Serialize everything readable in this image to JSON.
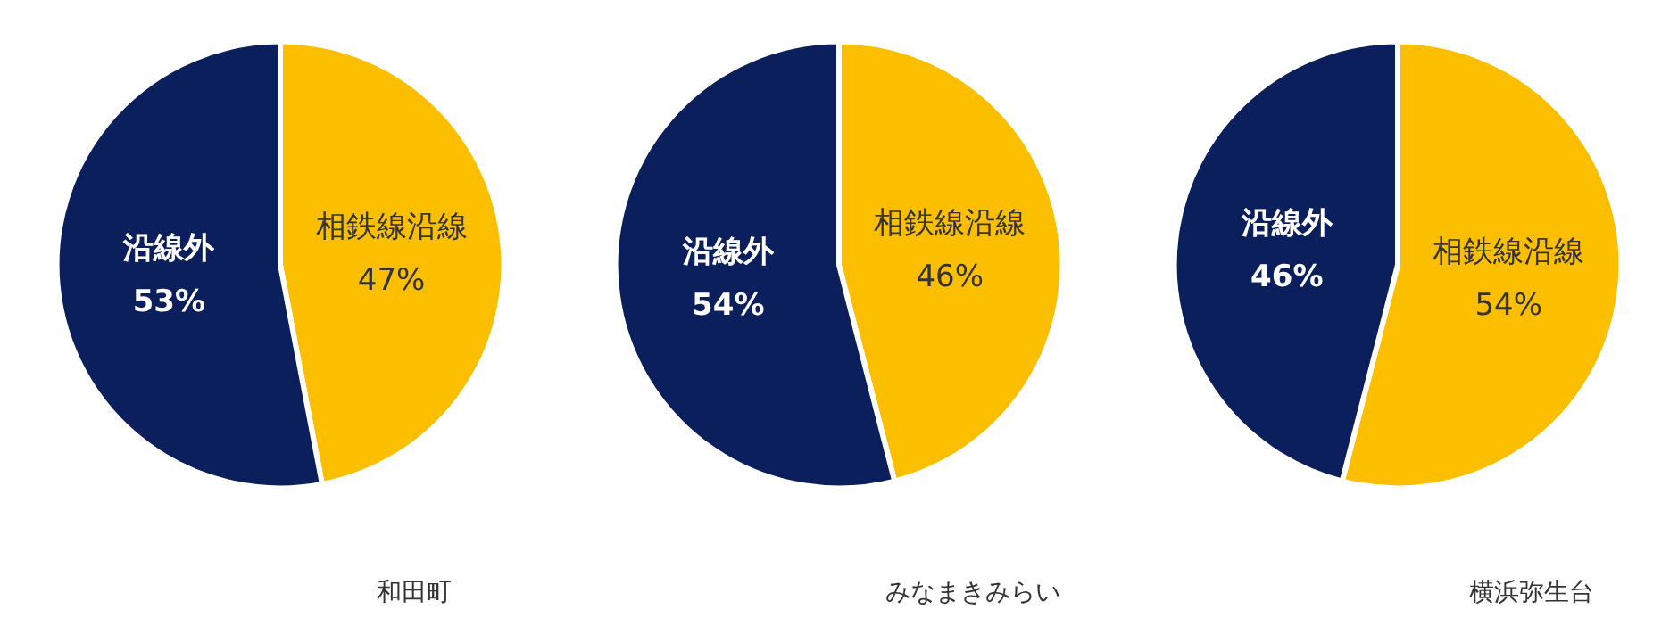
{
  "chart_data": [
    {
      "type": "pie",
      "title": "和田町",
      "categories": [
        "相鉄線沿線",
        "沿線外"
      ],
      "values": [
        47,
        53
      ],
      "colors": [
        "#fbbf00",
        "#0b1f5c"
      ],
      "value_labels": [
        "47%",
        "53%"
      ]
    },
    {
      "type": "pie",
      "title": "みなまきみらい",
      "categories": [
        "相鉄線沿線",
        "沿線外"
      ],
      "values": [
        46,
        54
      ],
      "colors": [
        "#fbbf00",
        "#0b1f5c"
      ],
      "value_labels": [
        "46%",
        "54%"
      ]
    },
    {
      "type": "pie",
      "title": "横浜弥生台",
      "categories": [
        "相鉄線沿線",
        "沿線外"
      ],
      "values": [
        54,
        46
      ],
      "colors": [
        "#fbbf00",
        "#0b1f5c"
      ],
      "value_labels": [
        "54%",
        "46%"
      ]
    }
  ]
}
